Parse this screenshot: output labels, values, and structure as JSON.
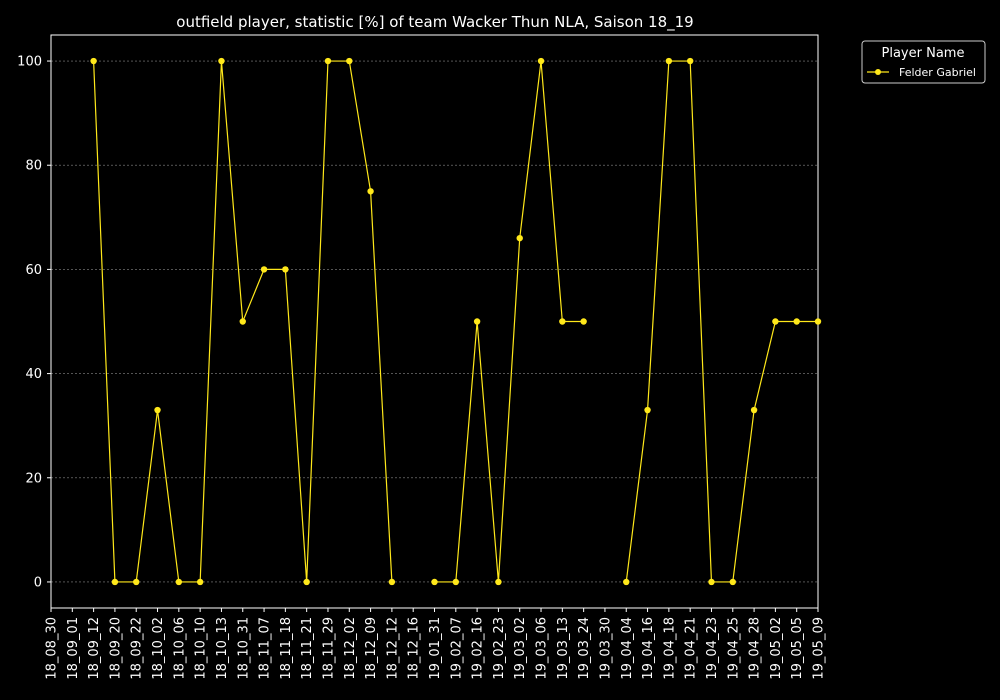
{
  "chart_data": {
    "type": "line",
    "title": "outfield player, statistic [%] of team Wacker Thun NLA, Saison 18_19",
    "xlabel": "",
    "ylabel": "",
    "ylim": [
      -5,
      105
    ],
    "yticks": [
      0,
      20,
      40,
      60,
      80,
      100
    ],
    "grid": "horizontal, dashed",
    "legend": {
      "title": "Player Name",
      "position": "top-right, outside plot"
    },
    "categories": [
      "18_08_30",
      "18_09_01",
      "18_09_12",
      "18_09_20",
      "18_09_22",
      "18_10_02",
      "18_10_06",
      "18_10_10",
      "18_10_13",
      "18_10_31",
      "18_11_07",
      "18_11_18",
      "18_11_21",
      "18_11_29",
      "18_12_02",
      "18_12_09",
      "18_12_12",
      "18_12_16",
      "19_01_31",
      "19_02_07",
      "19_02_16",
      "19_02_23",
      "19_03_02",
      "19_03_06",
      "19_03_13",
      "19_03_24",
      "19_03_30",
      "19_04_04",
      "19_04_16",
      "19_04_18",
      "19_04_21",
      "19_04_23",
      "19_04_25",
      "19_04_28",
      "19_05_02",
      "19_05_05",
      "19_05_09"
    ],
    "series": [
      {
        "name": "Felder Gabriel",
        "color": "#ffe81a",
        "values": [
          null,
          null,
          100,
          0,
          0,
          33,
          0,
          0,
          100,
          50,
          60,
          60,
          0,
          100,
          100,
          75,
          0,
          null,
          0,
          0,
          50,
          0,
          66,
          100,
          50,
          50,
          null,
          0,
          33,
          100,
          100,
          0,
          0,
          33,
          50,
          50,
          50
        ]
      }
    ]
  }
}
